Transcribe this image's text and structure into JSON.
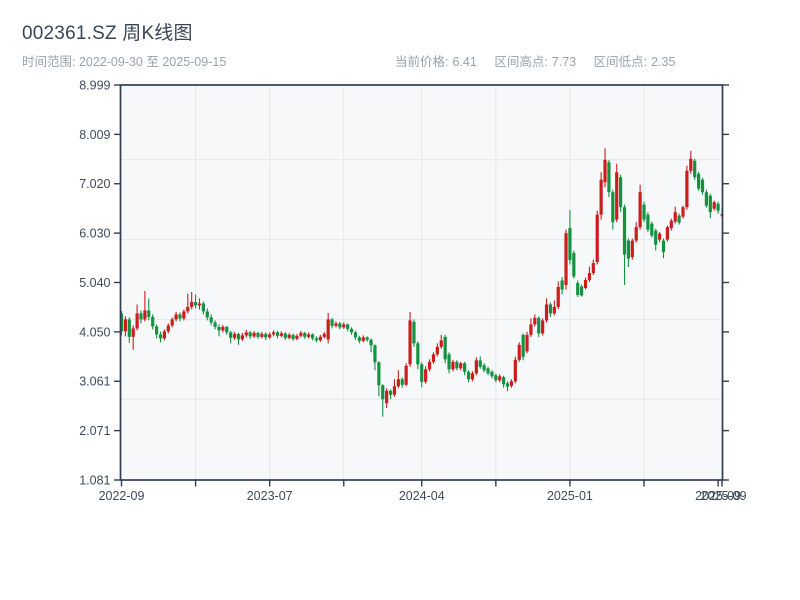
{
  "header": {
    "title": "002361.SZ 周K线图",
    "subtitle": "时间范围: 2022-09-30 至 2025-09-15",
    "stats": {
      "current": {
        "label": "当前价格:",
        "value": "6.41"
      },
      "high": {
        "label": "区间高点:",
        "value": "7.73"
      },
      "low": {
        "label": "区间低点:",
        "value": "2.35"
      }
    }
  },
  "chart_data": {
    "type": "candlestick",
    "symbol": "002361.SZ",
    "period": "weekly",
    "title": "002361.SZ 周K线图",
    "date_range": {
      "start": "2022-09-30",
      "end": "2025-09-15"
    },
    "current_price": 6.41,
    "range_high": 7.73,
    "range_low": 2.35,
    "ylim": [
      1.081,
      8.999
    ],
    "y_ticks": [
      "8.999",
      "8.009",
      "7.020",
      "6.030",
      "5.040",
      "4.050",
      "3.061",
      "2.071",
      "1.081"
    ],
    "x_axis": {
      "ticks": [
        {
          "week": 0,
          "label": "2022-09"
        },
        {
          "week": 19,
          "label": ""
        },
        {
          "week": 38,
          "label": "2023-07"
        },
        {
          "week": 57,
          "label": ""
        },
        {
          "week": 77,
          "label": "2024-04"
        },
        {
          "week": 96,
          "label": ""
        },
        {
          "week": 115,
          "label": "2025-01"
        },
        {
          "week": 134,
          "label": ""
        },
        {
          "week": 153,
          "label": "2025-09"
        }
      ],
      "end_overlap_label": "2025-09"
    },
    "grid": {
      "h_values": [
        7.5,
        5.9,
        4.3,
        2.7
      ],
      "v_weeks": [
        19,
        38,
        57,
        77,
        96,
        115,
        134
      ]
    },
    "legend": "none",
    "colors": {
      "up": "#cc1d1d",
      "down": "#149240",
      "spine": "#2f3e53",
      "grid": "#e4e8ec",
      "plot_bg": "#f6f8fa",
      "tick_label": "#3e4a5a",
      "title": "#3a4657",
      "muted": "#9aa2ac"
    },
    "candles_format": [
      "open",
      "high",
      "low",
      "close"
    ],
    "candles": [
      [
        4.42,
        4.47,
        3.98,
        4.06
      ],
      [
        4.06,
        4.36,
        3.96,
        4.3
      ],
      [
        4.3,
        4.34,
        3.83,
        3.95
      ],
      [
        3.95,
        4.18,
        3.69,
        4.12
      ],
      [
        4.12,
        4.6,
        4.08,
        4.42
      ],
      [
        4.42,
        4.48,
        4.22,
        4.3
      ],
      [
        4.3,
        4.87,
        4.26,
        4.48
      ],
      [
        4.48,
        4.72,
        4.28,
        4.35
      ],
      [
        4.35,
        4.4,
        4.1,
        4.16
      ],
      [
        4.16,
        4.2,
        3.92,
        4.0
      ],
      [
        4.0,
        4.06,
        3.84,
        3.92
      ],
      [
        3.92,
        4.1,
        3.88,
        4.06
      ],
      [
        4.06,
        4.22,
        4.02,
        4.18
      ],
      [
        4.18,
        4.34,
        4.14,
        4.3
      ],
      [
        4.3,
        4.45,
        4.26,
        4.4
      ],
      [
        4.4,
        4.44,
        4.26,
        4.32
      ],
      [
        4.32,
        4.5,
        4.28,
        4.46
      ],
      [
        4.46,
        4.82,
        4.42,
        4.55
      ],
      [
        4.55,
        4.85,
        4.5,
        4.65
      ],
      [
        4.65,
        4.8,
        4.52,
        4.58
      ],
      [
        4.58,
        4.72,
        4.5,
        4.62
      ],
      [
        4.62,
        4.66,
        4.4,
        4.46
      ],
      [
        4.46,
        4.52,
        4.28,
        4.34
      ],
      [
        4.34,
        4.4,
        4.18,
        4.24
      ],
      [
        4.24,
        4.28,
        4.1,
        4.15
      ],
      [
        4.15,
        4.2,
        3.96,
        4.08
      ],
      [
        4.08,
        4.19,
        4.04,
        4.15
      ],
      [
        4.15,
        4.17,
        3.99,
        4.04
      ],
      [
        4.04,
        4.07,
        3.82,
        3.93
      ],
      [
        3.93,
        4.05,
        3.89,
        4.01
      ],
      [
        4.01,
        4.03,
        3.79,
        3.9
      ],
      [
        3.9,
        4.03,
        3.87,
        3.98
      ],
      [
        3.98,
        4.09,
        3.94,
        4.04
      ],
      [
        4.04,
        4.07,
        3.91,
        3.96
      ],
      [
        3.96,
        4.07,
        3.93,
        4.03
      ],
      [
        4.03,
        4.05,
        3.91,
        3.95
      ],
      [
        3.95,
        4.05,
        3.92,
        4.01
      ],
      [
        4.01,
        4.04,
        3.89,
        3.94
      ],
      [
        3.94,
        4.04,
        3.91,
        4.0
      ],
      [
        4.0,
        4.08,
        3.96,
        4.04
      ],
      [
        4.04,
        4.07,
        3.92,
        3.97
      ],
      [
        3.97,
        4.06,
        3.94,
        4.02
      ],
      [
        4.02,
        4.04,
        3.89,
        3.93
      ],
      [
        3.93,
        4.03,
        3.9,
        3.99
      ],
      [
        3.99,
        4.01,
        3.87,
        3.91
      ],
      [
        3.91,
        4.01,
        3.88,
        3.97
      ],
      [
        3.97,
        4.07,
        3.94,
        4.03
      ],
      [
        4.03,
        4.05,
        3.91,
        3.95
      ],
      [
        3.95,
        4.04,
        3.92,
        4.0
      ],
      [
        4.0,
        4.02,
        3.88,
        3.92
      ],
      [
        3.92,
        3.96,
        3.84,
        3.88
      ],
      [
        3.88,
        3.99,
        3.85,
        3.95
      ],
      [
        3.95,
        4.05,
        3.92,
        4.01
      ],
      [
        3.9,
        4.43,
        3.82,
        4.3
      ],
      [
        4.3,
        4.33,
        4.12,
        4.17
      ],
      [
        4.17,
        4.26,
        4.14,
        4.22
      ],
      [
        4.22,
        4.25,
        4.1,
        4.14
      ],
      [
        4.14,
        4.24,
        4.11,
        4.2
      ],
      [
        4.2,
        4.22,
        4.06,
        4.11
      ],
      [
        4.11,
        4.14,
        3.99,
        4.04
      ],
      [
        4.04,
        4.07,
        3.89,
        3.94
      ],
      [
        3.94,
        3.97,
        3.82,
        3.87
      ],
      [
        3.87,
        3.98,
        3.84,
        3.94
      ],
      [
        3.94,
        3.96,
        3.85,
        3.89
      ],
      [
        3.89,
        3.92,
        3.64,
        3.78
      ],
      [
        3.78,
        3.8,
        3.28,
        3.44
      ],
      [
        3.44,
        3.46,
        2.76,
        2.98
      ],
      [
        2.98,
        3.0,
        2.35,
        2.7
      ],
      [
        2.62,
        2.92,
        2.52,
        2.87
      ],
      [
        2.87,
        2.9,
        2.7,
        2.79
      ],
      [
        2.79,
        3.1,
        2.75,
        2.96
      ],
      [
        2.96,
        3.28,
        2.92,
        3.1
      ],
      [
        3.1,
        3.14,
        2.93,
        2.99
      ],
      [
        2.99,
        3.42,
        2.96,
        3.37
      ],
      [
        3.4,
        4.45,
        3.35,
        4.28
      ],
      [
        4.25,
        4.3,
        3.75,
        3.82
      ],
      [
        3.82,
        3.86,
        3.3,
        3.4
      ],
      [
        3.4,
        3.44,
        2.94,
        3.05
      ],
      [
        3.05,
        3.36,
        3.01,
        3.3
      ],
      [
        3.3,
        3.5,
        3.26,
        3.45
      ],
      [
        3.45,
        3.64,
        3.41,
        3.6
      ],
      [
        3.6,
        3.82,
        3.56,
        3.75
      ],
      [
        3.75,
        3.99,
        3.71,
        3.88
      ],
      [
        3.95,
        3.99,
        3.42,
        3.5
      ],
      [
        3.6,
        3.64,
        3.22,
        3.3
      ],
      [
        3.3,
        3.49,
        3.26,
        3.45
      ],
      [
        3.45,
        3.48,
        3.28,
        3.32
      ],
      [
        3.32,
        3.45,
        3.28,
        3.42
      ],
      [
        3.42,
        3.45,
        3.18,
        3.25
      ],
      [
        3.25,
        3.28,
        3.04,
        3.1
      ],
      [
        3.1,
        3.26,
        3.06,
        3.22
      ],
      [
        3.22,
        3.54,
        3.18,
        3.48
      ],
      [
        3.48,
        3.56,
        3.31,
        3.35
      ],
      [
        3.38,
        3.42,
        3.24,
        3.28
      ],
      [
        3.32,
        3.35,
        3.18,
        3.22
      ],
      [
        3.25,
        3.28,
        3.12,
        3.16
      ],
      [
        3.18,
        3.21,
        3.04,
        3.08
      ],
      [
        3.08,
        3.2,
        3.04,
        3.16
      ],
      [
        3.14,
        3.17,
        2.93,
        3.0
      ],
      [
        3.02,
        3.06,
        2.86,
        2.95
      ],
      [
        2.97,
        3.1,
        2.93,
        3.06
      ],
      [
        3.06,
        3.55,
        3.02,
        3.49
      ],
      [
        3.49,
        3.84,
        3.45,
        3.79
      ],
      [
        3.99,
        4.02,
        3.48,
        3.55
      ],
      [
        3.66,
        4.05,
        3.62,
        3.99
      ],
      [
        3.99,
        4.32,
        3.95,
        4.2
      ],
      [
        4.2,
        4.4,
        4.16,
        4.33
      ],
      [
        4.33,
        4.36,
        3.95,
        4.02
      ],
      [
        4.02,
        4.32,
        3.98,
        4.28
      ],
      [
        4.28,
        4.72,
        4.24,
        4.6
      ],
      [
        4.6,
        4.64,
        4.35,
        4.42
      ],
      [
        4.42,
        4.68,
        4.38,
        4.55
      ],
      [
        4.55,
        5.06,
        4.51,
        4.95
      ],
      [
        5.08,
        5.15,
        4.8,
        4.9
      ],
      [
        4.99,
        6.1,
        4.9,
        6.03
      ],
      [
        6.13,
        6.49,
        5.4,
        5.49
      ],
      [
        5.63,
        5.68,
        5.12,
        5.16
      ],
      [
        5.03,
        5.08,
        4.75,
        4.79
      ],
      [
        4.96,
        5.0,
        4.76,
        4.78
      ],
      [
        4.93,
        5.14,
        4.9,
        5.09
      ],
      [
        5.09,
        5.36,
        5.05,
        5.23
      ],
      [
        5.23,
        5.5,
        5.19,
        5.43
      ],
      [
        5.45,
        6.48,
        5.4,
        6.4
      ],
      [
        6.4,
        7.25,
        6.3,
        7.1
      ],
      [
        7.05,
        7.73,
        6.95,
        7.5
      ],
      [
        7.45,
        7.5,
        6.75,
        6.85
      ],
      [
        6.85,
        6.9,
        6.1,
        6.25
      ],
      [
        6.3,
        7.42,
        6.25,
        7.25
      ],
      [
        7.15,
        7.2,
        6.45,
        6.55
      ],
      [
        6.55,
        6.6,
        4.99,
        5.6
      ],
      [
        5.88,
        5.92,
        5.35,
        5.52
      ],
      [
        5.55,
        5.92,
        5.5,
        5.88
      ],
      [
        5.88,
        6.25,
        5.84,
        6.15
      ],
      [
        6.15,
        7.0,
        6.1,
        6.85
      ],
      [
        6.6,
        6.66,
        6.25,
        6.3
      ],
      [
        6.4,
        6.45,
        6.05,
        6.1
      ],
      [
        6.22,
        6.26,
        5.94,
        5.98
      ],
      [
        6.08,
        6.12,
        5.68,
        5.8
      ],
      [
        5.9,
        6.05,
        5.85,
        6.02
      ],
      [
        5.88,
        5.92,
        5.53,
        5.65
      ],
      [
        5.9,
        6.18,
        5.86,
        6.15
      ],
      [
        6.13,
        6.32,
        6.08,
        6.28
      ],
      [
        6.26,
        6.56,
        6.22,
        6.45
      ],
      [
        6.38,
        6.42,
        6.2,
        6.24
      ],
      [
        6.36,
        6.58,
        6.32,
        6.55
      ],
      [
        6.55,
        7.38,
        6.5,
        7.28
      ],
      [
        7.28,
        7.68,
        7.22,
        7.52
      ],
      [
        7.48,
        7.52,
        7.1,
        7.15
      ],
      [
        7.22,
        7.26,
        6.88,
        6.92
      ],
      [
        7.1,
        7.14,
        6.8,
        6.85
      ],
      [
        6.85,
        6.9,
        6.54,
        6.58
      ],
      [
        6.78,
        6.82,
        6.33,
        6.45
      ],
      [
        6.52,
        6.68,
        6.48,
        6.65
      ],
      [
        6.62,
        6.66,
        6.42,
        6.48
      ],
      [
        6.38,
        6.52,
        6.34,
        6.41
      ]
    ]
  }
}
